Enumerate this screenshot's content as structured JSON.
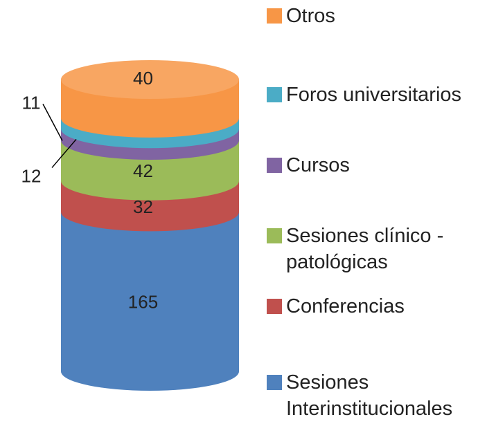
{
  "chart_data": {
    "type": "stacked_cylinder",
    "categories": [
      "Sesiones Interinstitucionales",
      "Conferencias",
      "Sesiones clínico - patológicas",
      "Cursos",
      "Foros universitarios",
      "Otros"
    ],
    "values": [
      165,
      32,
      42,
      12,
      11,
      40
    ],
    "colors": [
      "#4f81bd",
      "#c0504d",
      "#9bbb59",
      "#8064a2",
      "#4bacc6",
      "#f79646"
    ],
    "legend": "right"
  }
}
